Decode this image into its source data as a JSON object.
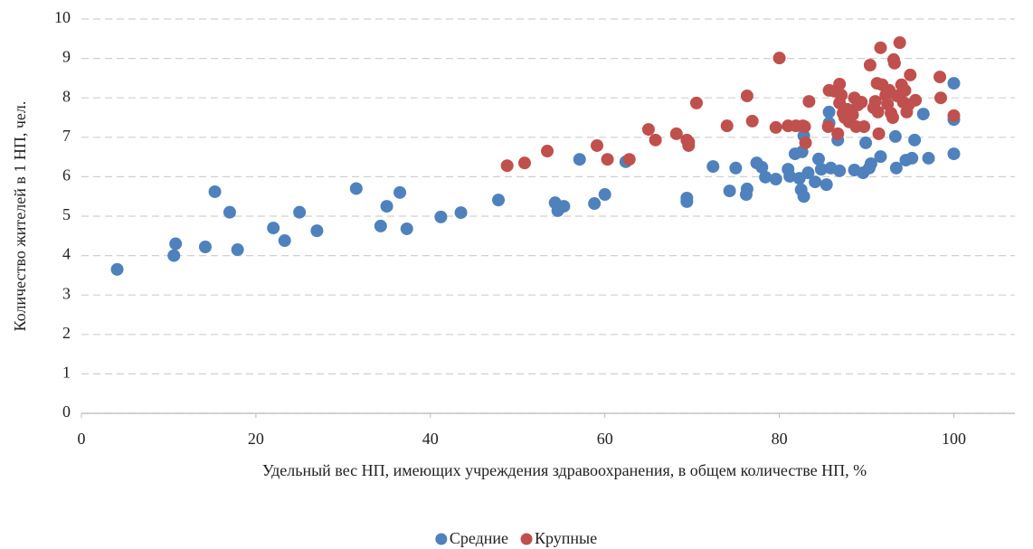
{
  "chart_data": {
    "type": "scatter",
    "xlabel": "Удельный вес НП, имеющих учреждения здравоохранения, в общем количестве НП, %",
    "ylabel": "Количество жителей в 1 НП, чел.",
    "xlim": [
      0,
      107
    ],
    "xticks": [
      0,
      20,
      40,
      60,
      80,
      100
    ],
    "ylim": [
      0,
      10
    ],
    "yticks": [
      0,
      1,
      2,
      3,
      4,
      5,
      6,
      7,
      8,
      9,
      10
    ],
    "grid": true,
    "legend": "bottom",
    "series": [
      {
        "name": "Средние",
        "color": "#4f81bd",
        "x": [
          4.1,
          10.6,
          10.8,
          14.2,
          15.3,
          17.0,
          17.9,
          22.0,
          23.3,
          25.0,
          27.0,
          31.5,
          34.3,
          35.0,
          36.5,
          37.3,
          41.2,
          43.5,
          47.8,
          54.3,
          54.6,
          55.3,
          57.1,
          58.8,
          60.0,
          62.4,
          69.4,
          69.4,
          72.4,
          74.3,
          75.0,
          76.2,
          76.3,
          77.4,
          78.0,
          78.4,
          79.6,
          81.0,
          81.2,
          81.8,
          82.3,
          82.5,
          82.8,
          82.6,
          82.8,
          83.3,
          84.1,
          84.5,
          84.8,
          85.4,
          85.7,
          85.7,
          85.9,
          86.7,
          86.9,
          88.6,
          89.6,
          89.9,
          90.3,
          90.5,
          91.6,
          93.3,
          93.4,
          94.5,
          95.2,
          95.5,
          96.5,
          97.1,
          100,
          100,
          100
        ],
        "values": [
          3.65,
          4.0,
          4.3,
          4.22,
          5.62,
          5.1,
          4.15,
          4.7,
          4.38,
          5.1,
          4.63,
          5.7,
          4.75,
          5.25,
          5.6,
          4.68,
          4.98,
          5.09,
          5.41,
          5.34,
          5.14,
          5.25,
          6.44,
          5.32,
          5.55,
          6.38,
          5.46,
          5.37,
          6.26,
          5.64,
          6.22,
          5.55,
          5.69,
          6.35,
          6.24,
          5.99,
          5.94,
          6.19,
          6.01,
          6.58,
          5.96,
          5.67,
          5.5,
          6.63,
          7.04,
          6.1,
          5.87,
          6.45,
          6.19,
          5.8,
          7.64,
          7.36,
          6.22,
          6.93,
          6.15,
          6.17,
          6.1,
          6.86,
          6.22,
          6.33,
          6.51,
          7.02,
          6.22,
          6.42,
          6.47,
          6.93,
          7.59,
          6.47,
          8.37,
          7.45,
          6.58
        ]
      },
      {
        "name": "Крупные",
        "color": "#c0504d",
        "x": [
          48.8,
          50.8,
          53.4,
          59.1,
          60.3,
          62.8,
          65.0,
          65.8,
          68.2,
          69.4,
          69.6,
          69.6,
          70.5,
          74.0,
          76.3,
          76.9,
          79.6,
          80.0,
          81.0,
          81.9,
          82.7,
          82.9,
          83.0,
          83.4,
          85.7,
          85.6,
          86.3,
          86.7,
          86.9,
          86.9,
          87.1,
          87.3,
          87.5,
          87.8,
          88.0,
          88.4,
          88.6,
          88.8,
          89.0,
          89.4,
          89.7,
          90.4,
          90.8,
          91.0,
          91.2,
          91.3,
          91.4,
          91.6,
          91.8,
          92.2,
          92.4,
          92.6,
          92.8,
          93.0,
          93.1,
          93.2,
          93.5,
          93.8,
          94.0,
          94.2,
          94.4,
          94.6,
          94.8,
          95.0,
          95.6,
          98.4,
          98.5,
          100
        ],
        "values": [
          6.28,
          6.35,
          6.65,
          6.79,
          6.44,
          6.44,
          7.2,
          6.93,
          7.09,
          6.93,
          6.79,
          6.88,
          7.87,
          7.29,
          8.05,
          7.41,
          7.25,
          9.01,
          7.29,
          7.29,
          7.29,
          7.27,
          6.86,
          7.91,
          8.19,
          7.27,
          8.17,
          7.09,
          8.35,
          7.87,
          8.07,
          7.61,
          7.5,
          7.71,
          7.39,
          7.57,
          8.0,
          7.27,
          7.82,
          7.89,
          7.27,
          8.83,
          7.75,
          7.91,
          8.37,
          7.64,
          7.09,
          9.27,
          8.33,
          8.07,
          7.84,
          8.19,
          7.61,
          7.5,
          8.97,
          8.88,
          8.05,
          9.4,
          8.33,
          7.89,
          8.19,
          7.64,
          7.82,
          8.58,
          7.94,
          8.53,
          8.0,
          7.55
        ]
      }
    ]
  }
}
